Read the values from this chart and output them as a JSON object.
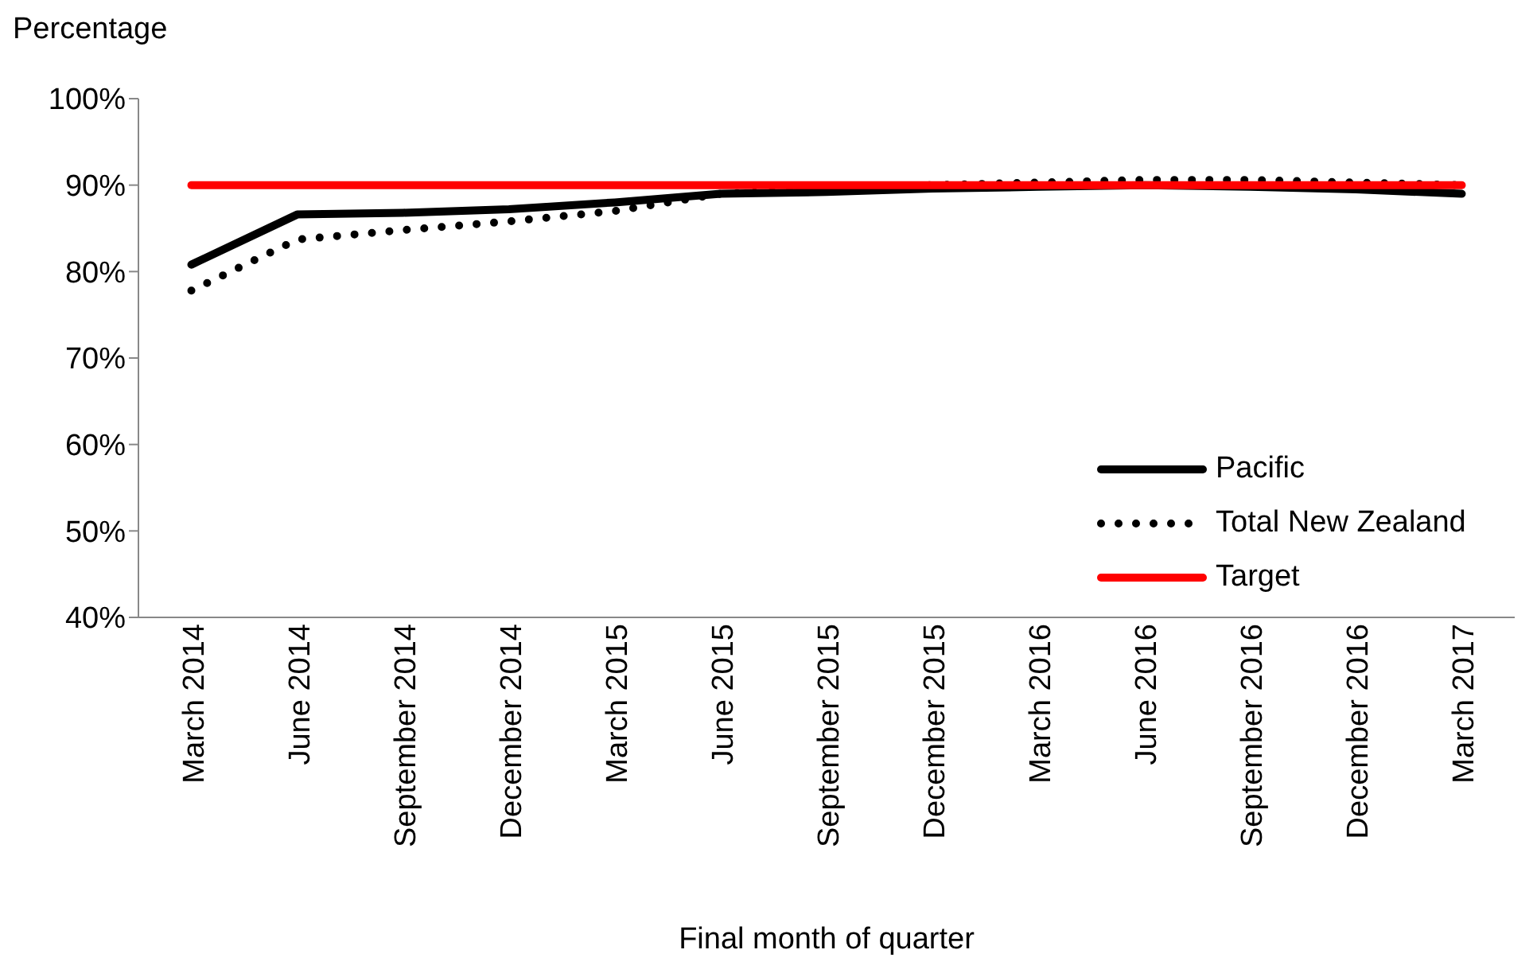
{
  "chart_data": {
    "type": "line",
    "ylabel": "Percentage",
    "xlabel": "Final month of quarter",
    "categories": [
      "March 2014",
      "June 2014",
      "September 2014",
      "December 2014",
      "March 2015",
      "June 2015",
      "September 2015",
      "December 2015",
      "March 2016",
      "June 2016",
      "September 2016",
      "December 2016",
      "March 2017"
    ],
    "series": [
      {
        "name": "Pacific",
        "color": "#000000",
        "line_style": "solid",
        "values": [
          80.8,
          86.6,
          86.8,
          87.2,
          88.0,
          89.0,
          89.2,
          89.6,
          89.8,
          90.0,
          89.8,
          89.5,
          89.0
        ]
      },
      {
        "name": "Total New Zealand",
        "color": "#000000",
        "line_style": "dotted",
        "values": [
          77.8,
          83.7,
          84.8,
          85.8,
          87.0,
          89.0,
          89.5,
          90.0,
          90.3,
          90.6,
          90.6,
          90.3,
          90.0
        ]
      },
      {
        "name": "Target",
        "color": "#ff0000",
        "line_style": "solid",
        "values": [
          90,
          90,
          90,
          90,
          90,
          90,
          90,
          90,
          90,
          90,
          90,
          90,
          90
        ]
      }
    ],
    "ylim": [
      40,
      100
    ],
    "yticks": [
      {
        "value": 40,
        "label": "40%"
      },
      {
        "value": 50,
        "label": "50%"
      },
      {
        "value": 60,
        "label": "60%"
      },
      {
        "value": 70,
        "label": "70%"
      },
      {
        "value": 80,
        "label": "80%"
      },
      {
        "value": 90,
        "label": "90%"
      },
      {
        "value": 100,
        "label": "100%"
      }
    ],
    "grid": false,
    "legend": "bottom right",
    "marker": "none"
  }
}
